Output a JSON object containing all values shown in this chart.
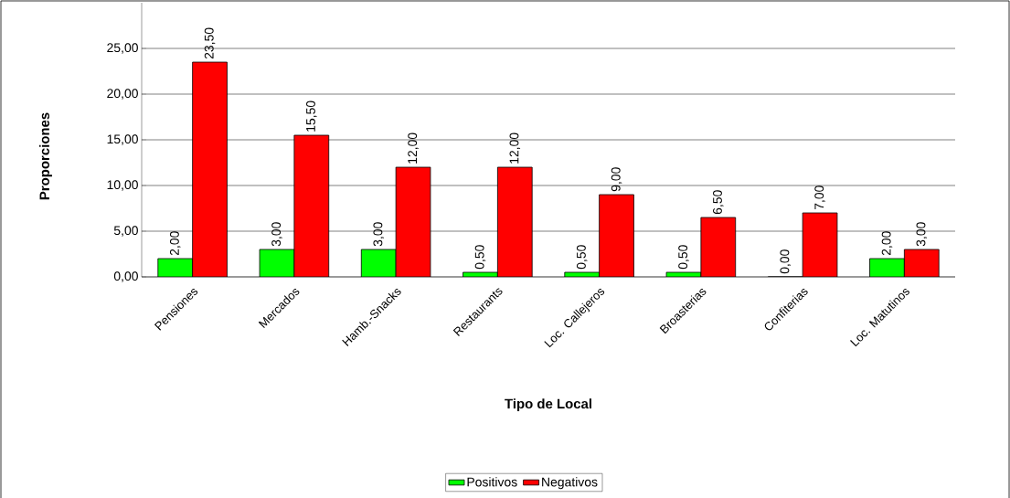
{
  "chart_data": {
    "type": "bar",
    "xlabel": "Tipo de Local",
    "ylabel": "Proporciones",
    "categories": [
      "Pensiones",
      "Mercados",
      "Hamb.-Snacks",
      "Restaurants",
      "Loc. Callejeros",
      "Broasterias",
      "Confiterias",
      "Loc. Matutinos"
    ],
    "series": [
      {
        "name": "Positivos",
        "color": "#00ff00",
        "values": [
          2,
          3,
          3,
          0.5,
          0.5,
          0.5,
          0,
          2
        ],
        "value_labels": [
          "2,00",
          "3,00",
          "3,00",
          "0,50",
          "0,50",
          "0,50",
          "0,00",
          "2,00"
        ]
      },
      {
        "name": "Negativos",
        "color": "#ff0000",
        "values": [
          23.5,
          15.5,
          12,
          12,
          9,
          6.5,
          7,
          3
        ],
        "value_labels": [
          "23,50",
          "15,50",
          "12,00",
          "12,00",
          "9,00",
          "6,50",
          "7,00",
          "3,00"
        ]
      }
    ],
    "ylim": [
      0,
      30
    ],
    "yticks": [
      {
        "value": 0,
        "label": "0,00"
      },
      {
        "value": 5,
        "label": "5,00"
      },
      {
        "value": 10,
        "label": "10,00"
      },
      {
        "value": 15,
        "label": "15,00"
      },
      {
        "value": 20,
        "label": "20,00"
      },
      {
        "value": 25,
        "label": "25,00"
      }
    ],
    "grid": "y",
    "legend": "bottom"
  }
}
